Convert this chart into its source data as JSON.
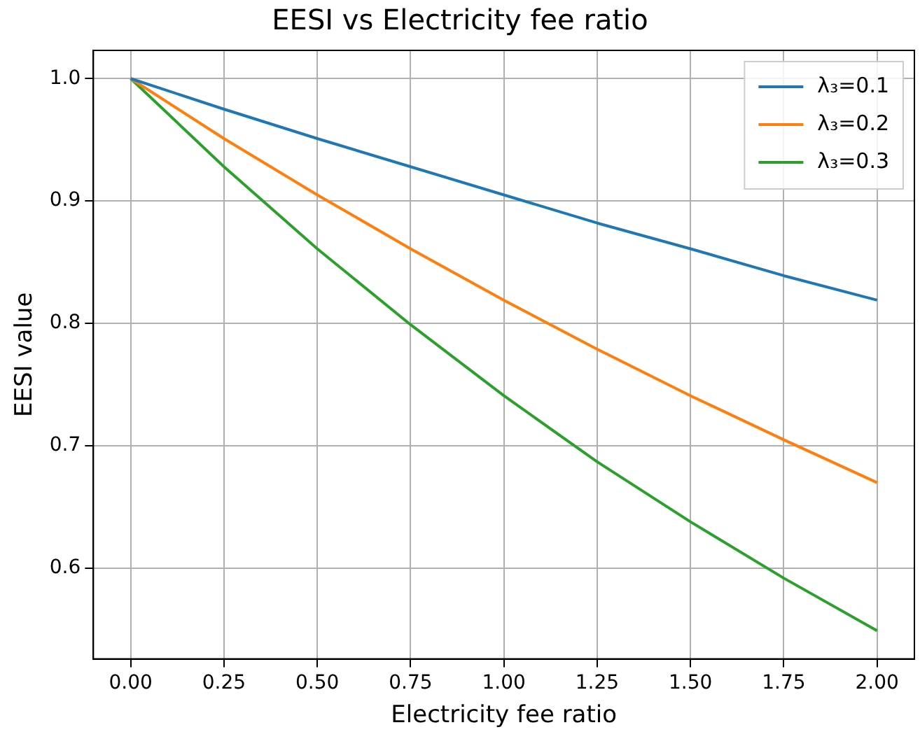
{
  "chart_data": {
    "type": "line",
    "title": "EESI vs Electricity fee ratio",
    "xlabel": "Electricity fee ratio",
    "ylabel": "EESI value",
    "x": [
      0,
      0.25,
      0.5,
      0.75,
      1,
      1.25,
      1.5,
      1.75,
      2
    ],
    "series": [
      {
        "name": "λ₃=0.1",
        "color": "#1f77b4",
        "values": [
          1,
          0.975,
          0.951,
          0.928,
          0.905,
          0.882,
          0.861,
          0.839,
          0.819
        ]
      },
      {
        "name": "λ₃=0.2",
        "color": "#ff7f0e",
        "values": [
          1,
          0.951,
          0.905,
          0.861,
          0.819,
          0.779,
          0.741,
          0.705,
          0.67
        ]
      },
      {
        "name": "λ₃=0.3",
        "color": "#2ca02c",
        "values": [
          1,
          0.928,
          0.861,
          0.799,
          0.741,
          0.687,
          0.638,
          0.592,
          0.549
        ]
      }
    ],
    "xlim": [
      -0.1,
      2.1
    ],
    "ylim": [
      0.526,
      1.023
    ],
    "xticks": [
      {
        "value": 0,
        "label": "0.00"
      },
      {
        "value": 0.25,
        "label": "0.25"
      },
      {
        "value": 0.5,
        "label": "0.50"
      },
      {
        "value": 0.75,
        "label": "0.75"
      },
      {
        "value": 1,
        "label": "1.00"
      },
      {
        "value": 1.25,
        "label": "1.25"
      },
      {
        "value": 1.5,
        "label": "1.50"
      },
      {
        "value": 1.75,
        "label": "1.75"
      },
      {
        "value": 2,
        "label": "2.00"
      }
    ],
    "yticks": [
      0.6,
      0.7,
      0.8,
      0.9,
      {
        "value": 1,
        "label": "1.0"
      }
    ],
    "grid": true,
    "legend": "top right",
    "marker": "none",
    "line_style": "solid"
  }
}
